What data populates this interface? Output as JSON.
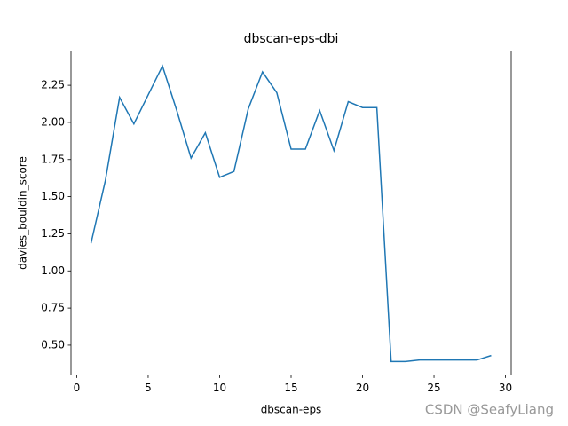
{
  "chart_data": {
    "type": "line",
    "title": "dbscan-eps-dbi",
    "xlabel": "dbscan-eps",
    "ylabel": "davies_bouldin_score",
    "x": [
      1,
      2,
      3,
      4,
      5,
      6,
      7,
      8,
      9,
      10,
      11,
      12,
      13,
      14,
      15,
      16,
      17,
      18,
      19,
      20,
      21,
      22,
      23,
      24,
      25,
      26,
      27,
      28,
      29
    ],
    "series": [
      {
        "name": "dbi",
        "color": "#1f77b4",
        "values": [
          1.186,
          1.606,
          2.168,
          1.99,
          2.185,
          2.38,
          2.08,
          1.76,
          1.93,
          1.63,
          1.67,
          2.09,
          2.34,
          2.2,
          1.82,
          1.82,
          2.08,
          1.81,
          2.14,
          2.1,
          2.1,
          0.39,
          0.39,
          0.4,
          0.4,
          0.4,
          0.4,
          0.4,
          0.43
        ]
      }
    ],
    "xlim": [
      -0.4,
      30.4
    ],
    "ylim": [
      0.3,
      2.48
    ],
    "xticks": [
      0,
      5,
      10,
      15,
      20,
      25,
      30
    ],
    "yticks": [
      {
        "value": 0.5,
        "label": "0.50"
      },
      {
        "value": 0.75,
        "label": "0.75"
      },
      {
        "value": 1.0,
        "label": "1.00"
      },
      {
        "value": 1.25,
        "label": "1.25"
      },
      {
        "value": 1.5,
        "label": "1.50"
      },
      {
        "value": 1.75,
        "label": "1.75"
      },
      {
        "value": 2.0,
        "label": "2.00"
      },
      {
        "value": 2.25,
        "label": "2.25"
      }
    ],
    "grid": false
  },
  "watermark": "CSDN @SeafyLiang"
}
